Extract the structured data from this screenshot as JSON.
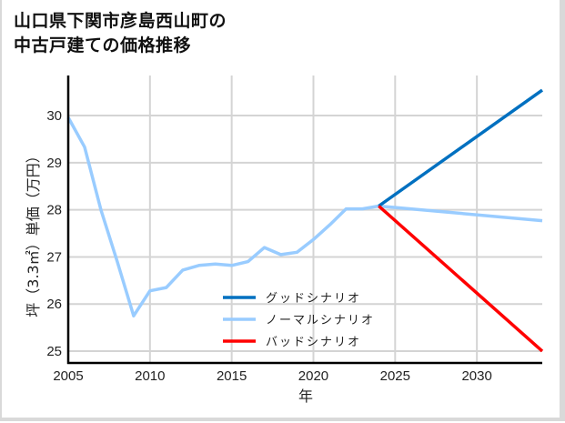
{
  "title": {
    "line1": "山口県下関市彦島西山町の",
    "line2": "中古戸建ての価格推移"
  },
  "chart_data": {
    "type": "line",
    "title": "山口県下関市彦島西山町の中古戸建ての価格推移",
    "xlabel": "年",
    "ylabel": "坪（3.3㎡）単価（万円）",
    "xlim": [
      2005,
      2034
    ],
    "ylim": [
      24.75,
      30.85
    ],
    "x_ticks": [
      2005,
      2010,
      2015,
      2020,
      2025,
      2030
    ],
    "y_ticks": [
      25,
      26,
      27,
      28,
      29,
      30
    ],
    "grid": true,
    "legend_position": "lower center",
    "series": [
      {
        "name": "グッドシナリオ",
        "color": "#0070c0",
        "x": [
          2024,
          2034
        ],
        "values": [
          28.08,
          30.54
        ]
      },
      {
        "name": "ノーマルシナリオ",
        "color": "#99ccff",
        "x": [
          2005,
          2006,
          2007,
          2008,
          2009,
          2010,
          2011,
          2012,
          2013,
          2014,
          2015,
          2016,
          2017,
          2018,
          2019,
          2020,
          2021,
          2022,
          2023,
          2024,
          2034
        ],
        "values": [
          29.96,
          29.33,
          28.0,
          26.9,
          25.75,
          26.28,
          26.35,
          26.72,
          26.82,
          26.85,
          26.82,
          26.9,
          27.2,
          27.05,
          27.1,
          27.37,
          27.68,
          28.02,
          28.02,
          28.08,
          27.77
        ]
      },
      {
        "name": "バッドシナリオ",
        "color": "#ff0000",
        "x": [
          2024,
          2034
        ],
        "values": [
          28.08,
          25.0
        ]
      }
    ]
  }
}
